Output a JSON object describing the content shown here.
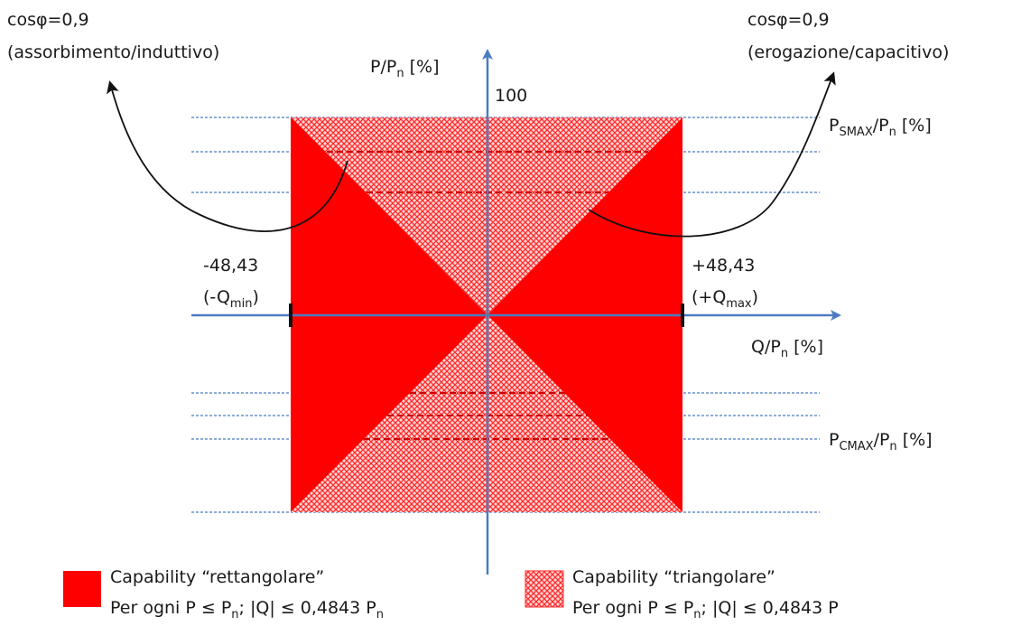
{
  "annotations": {
    "left_cos_line1": "cosφ=0,9",
    "left_cos_line2": "(assorbimento/induttivo)",
    "right_cos_line1": "cosφ=0,9",
    "right_cos_line2": "(erogazione/capacitivo)"
  },
  "axes": {
    "y_label_main": "P/P",
    "y_label_sub": "n",
    "y_label_unit": " [%]",
    "y_top_value": "100",
    "x_label_main": "Q/P",
    "x_label_sub": "n",
    "x_label_unit": " [%]"
  },
  "markers": {
    "left_value": "-48,43",
    "left_label_open": "(-Q",
    "left_label_sub": "min",
    "left_label_close": ")",
    "right_value": "+48,43",
    "right_label_open": "(+Q",
    "right_label_sub": "max",
    "right_label_close": ")"
  },
  "levels": {
    "psmax_main": "P",
    "psmax_sub": "SMAX",
    "psmax_rest": "/P",
    "psmax_sub2": "n",
    "psmax_unit": " [%]",
    "pcmax_main": "P",
    "pcmax_sub": "CMAX",
    "pcmax_rest": "/P",
    "pcmax_sub2": "n",
    "pcmax_unit": " [%]"
  },
  "legend": {
    "rect_title": "Capability “rettangolare”",
    "rect_desc": "Per ogni P ≤ P",
    "rect_desc_sub": "n",
    "rect_desc_rest": "; |Q| ≤ 0,4843 P",
    "rect_desc_sub2": "n",
    "tri_title": "Capability “triangolare”",
    "tri_desc": "Per ogni P ≤ P",
    "tri_desc_sub": "n",
    "tri_desc_rest": "; |Q| ≤ 0,4843 P"
  },
  "colors": {
    "rect_fill": "#ff0000",
    "axis": "#4a7cc0",
    "level_line": "#4a7cc0",
    "dashed_red": "#cc0000"
  }
}
